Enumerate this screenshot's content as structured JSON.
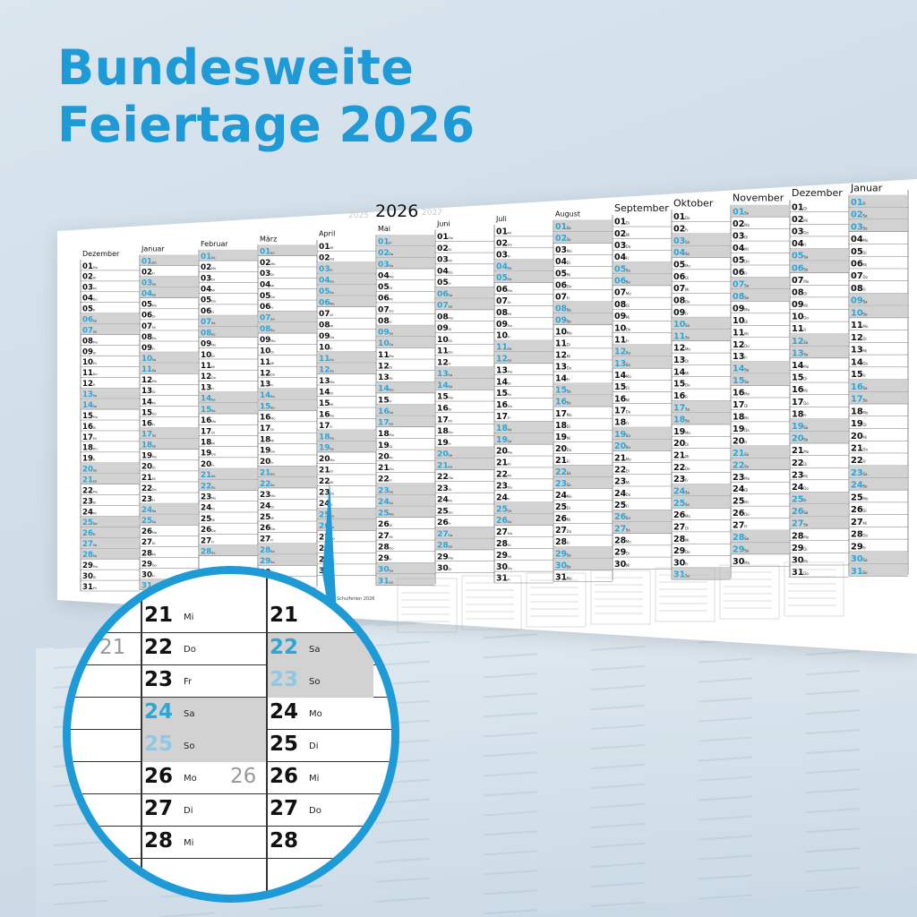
{
  "headline": {
    "line1": "Bundesweite",
    "line2": "Feiertage 2026"
  },
  "colors": {
    "accent": "#1e9ad6",
    "weekend": "#d2d2d2",
    "text": "#111111",
    "holiday": "#2aa6d9"
  },
  "poster": {
    "year": "2026",
    "prev_year": "2025",
    "next_year": "2027",
    "months": [
      "Dezember",
      "Januar",
      "Februar",
      "März",
      "April",
      "Mai",
      "Juni",
      "Juli",
      "August",
      "September",
      "Oktober",
      "November",
      "Dezember",
      "Januar"
    ],
    "schoolbox_label": "Schulferien 2026"
  },
  "magnifier": {
    "rows": [
      {
        "col1": {
          "num": "21",
          "wd": "Mi"
        },
        "col2": {
          "num": "21",
          "wd": ""
        }
      },
      {
        "week": "21",
        "col1": {
          "num": "22",
          "wd": "Do"
        },
        "col2": {
          "num": "22",
          "wd": "Sa",
          "color": "blue",
          "shade": true
        }
      },
      {
        "col1": {
          "num": "23",
          "wd": "Fr"
        },
        "col2": {
          "num": "23",
          "wd": "So",
          "color": "lightblue",
          "shade": true
        }
      },
      {
        "col1": {
          "num": "24",
          "wd": "Sa",
          "color": "blue",
          "shade": true
        },
        "col2": {
          "num": "24",
          "wd": "Mo"
        }
      },
      {
        "col1": {
          "num": "25",
          "wd": "So",
          "color": "lightblue",
          "shade": true
        },
        "col2": {
          "num": "25",
          "wd": "Di"
        }
      },
      {
        "week": "26",
        "col1": {
          "num": "26",
          "wd": "Mo"
        },
        "col2": {
          "num": "26",
          "wd": "Mi"
        }
      },
      {
        "col1": {
          "num": "27",
          "wd": "Di"
        },
        "col2": {
          "num": "27",
          "wd": "Do"
        }
      },
      {
        "col1": {
          "num": "28",
          "wd": "Mi"
        },
        "col2": {
          "num": "28",
          "wd": ""
        }
      }
    ]
  }
}
